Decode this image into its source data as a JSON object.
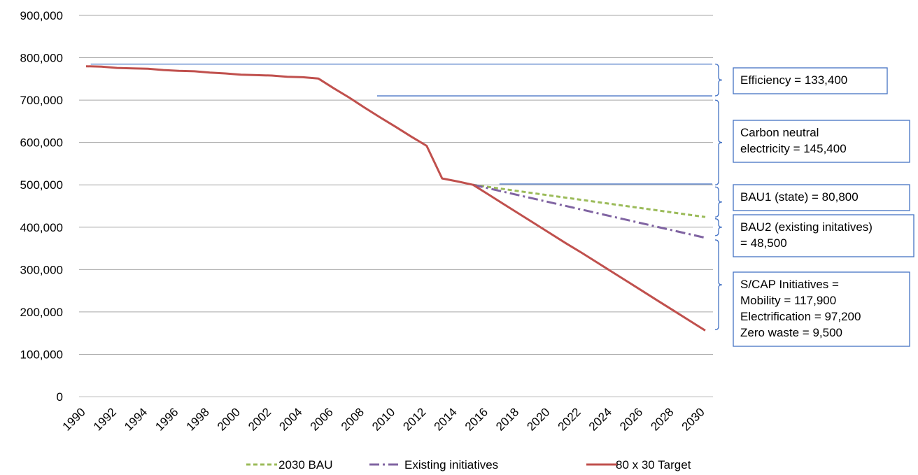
{
  "chart_data": {
    "type": "line",
    "title": "",
    "xlabel": "",
    "ylabel": "",
    "ylim": [
      0,
      900000
    ],
    "yticks": [
      "0",
      "100,000",
      "200,000",
      "300,000",
      "400,000",
      "500,000",
      "600,000",
      "700,000",
      "800,000",
      "900,000"
    ],
    "ytick_values": [
      0,
      100000,
      200000,
      300000,
      400000,
      500000,
      600000,
      700000,
      800000,
      900000
    ],
    "x_tick_labels": [
      "1990",
      "1992",
      "1994",
      "1996",
      "1998",
      "2000",
      "2002",
      "2004",
      "2006",
      "2008",
      "2010",
      "2012",
      "2014",
      "2016",
      "2018",
      "2020",
      "2022",
      "2024",
      "2026",
      "2028",
      "2030"
    ],
    "x_range": [
      1990,
      2030
    ],
    "grid": true,
    "legend_position": "bottom",
    "series": [
      {
        "name": "2030 BAU",
        "color": "#9BBB59",
        "style": "dashed",
        "x": [
          2015,
          2030
        ],
        "values": [
          500000,
          424000
        ]
      },
      {
        "name": "Existing initiatives",
        "color": "#8064A2",
        "style": "dash-dot",
        "x": [
          2015,
          2030
        ],
        "values": [
          500000,
          375000
        ]
      },
      {
        "name": "80 x 30 Target",
        "color": "#C0504D",
        "style": "solid",
        "x": [
          1990,
          1991,
          1992,
          1993,
          1994,
          1995,
          1996,
          1997,
          1998,
          1999,
          2000,
          2001,
          2002,
          2003,
          2004,
          2005,
          2006,
          2007,
          2008,
          2009,
          2010,
          2011,
          2012,
          2013,
          2014,
          2015,
          2016,
          2017,
          2018,
          2019,
          2020,
          2021,
          2022,
          2023,
          2024,
          2025,
          2026,
          2027,
          2028,
          2029,
          2030
        ],
        "values": [
          780000,
          779000,
          776000,
          775000,
          774000,
          771000,
          769000,
          768000,
          765000,
          763000,
          760000,
          759000,
          758000,
          755000,
          754000,
          751000,
          728000,
          706000,
          682000,
          659000,
          637000,
          614000,
          592000,
          515000,
          508000,
          500000,
          477000,
          454000,
          431000,
          408000,
          385000,
          362000,
          340000,
          317000,
          294000,
          271000,
          248000,
          225000,
          202000,
          179000,
          156000
        ]
      }
    ],
    "reference_lines": [
      {
        "value": 785000,
        "from": 1990.3,
        "to": 2030
      },
      {
        "value": 710000,
        "from": 2008.8,
        "to": 2030
      },
      {
        "value": 502000,
        "from": 2016.7,
        "to": 2030
      }
    ],
    "annotations": [
      {
        "lines": [
          "Efficiency = 133,400"
        ],
        "bracket": [
          785000,
          710000
        ]
      },
      {
        "lines": [
          "Carbon neutral",
          "electricity = 145,400"
        ],
        "bracket": [
          700000,
          500000
        ]
      },
      {
        "lines": [
          "BAU1 (state) = 80,800"
        ],
        "bracket": [
          495000,
          424000
        ]
      },
      {
        "lines": [
          "BAU2 (existing initatives)",
          "= 48,500"
        ],
        "bracket": [
          420000,
          380000
        ]
      },
      {
        "lines": [
          "S/CAP Initiatives =",
          "Mobility = 117,900",
          "Electrification = 97,200",
          "Zero waste = 9,500"
        ],
        "bracket": [
          370000,
          158000
        ]
      }
    ]
  }
}
